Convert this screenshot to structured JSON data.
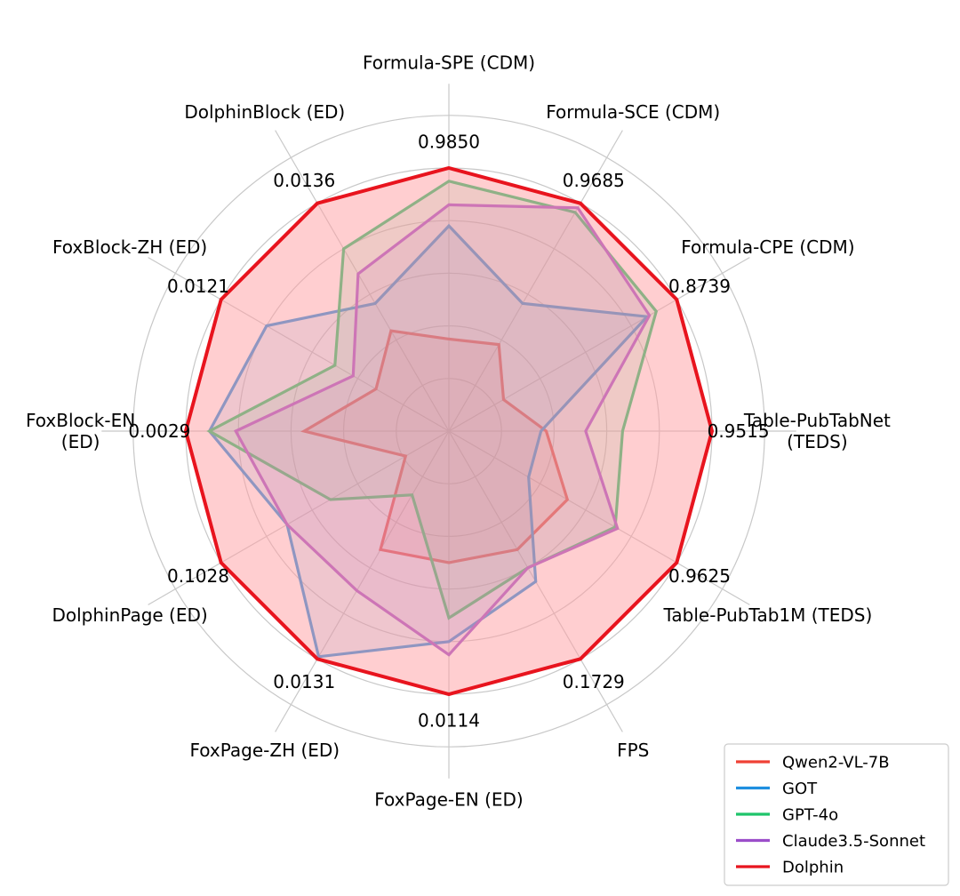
{
  "chart_data": {
    "type": "radar",
    "title": "",
    "rlim": [
      0,
      1
    ],
    "grid": true,
    "legend_position": "bottom-right",
    "axes": [
      {
        "label": "Formula-SPE (CDM)",
        "best_value": "0.9850"
      },
      {
        "label": "Formula-SCE (CDM)",
        "best_value": "0.9685"
      },
      {
        "label": "Formula-CPE (CDM)",
        "best_value": "0.8739"
      },
      {
        "label": "Table-PubTabNet\n(TEDS)",
        "best_value": "0.9515"
      },
      {
        "label": "Table-PubTab1M (TEDS)",
        "best_value": "0.9625"
      },
      {
        "label": "FPS",
        "best_value": "0.1729"
      },
      {
        "label": "FoxPage-EN (ED)",
        "best_value": "0.0114"
      },
      {
        "label": "FoxPage-ZH (ED)",
        "best_value": "0.0131"
      },
      {
        "label": "DolphinPage (ED)",
        "best_value": "0.1028"
      },
      {
        "label": "FoxBlock-EN\n(ED)",
        "best_value": "0.0029"
      },
      {
        "label": "FoxBlock-ZH (ED)",
        "best_value": "0.0121"
      },
      {
        "label": "DolphinBlock (ED)",
        "best_value": "0.0136"
      }
    ],
    "series": [
      {
        "name": "Qwen2-VL-7B",
        "color": "#ef4135",
        "fill": false,
        "values": [
          0.35,
          0.38,
          0.24,
          0.37,
          0.52,
          0.52,
          0.5,
          0.52,
          0.19,
          0.55,
          0.32,
          0.44
        ]
      },
      {
        "name": "GOT",
        "color": "#1f8fe0",
        "fill": false,
        "values": [
          0.78,
          0.56,
          0.87,
          0.35,
          0.35,
          0.66,
          0.8,
          0.99,
          0.71,
          0.91,
          0.8,
          0.56
        ]
      },
      {
        "name": "GPT-4o",
        "color": "#1ec46a",
        "fill": false,
        "values": [
          0.95,
          0.96,
          0.91,
          0.66,
          0.73,
          0.6,
          0.71,
          0.28,
          0.52,
          0.91,
          0.5,
          0.8
        ]
      },
      {
        "name": "Claude3.5-Sonnet",
        "color": "#9b4dca",
        "fill": false,
        "values": [
          0.86,
          0.98,
          0.88,
          0.52,
          0.74,
          0.6,
          0.85,
          0.7,
          0.71,
          0.81,
          0.42,
          0.69
        ]
      },
      {
        "name": "Dolphin",
        "color": "#e8141e",
        "fill": true,
        "fill_color": "#ff9ea2",
        "values": [
          1.0,
          1.0,
          1.0,
          1.0,
          1.0,
          1.0,
          1.0,
          1.0,
          1.0,
          1.0,
          1.0,
          1.0
        ]
      }
    ]
  }
}
